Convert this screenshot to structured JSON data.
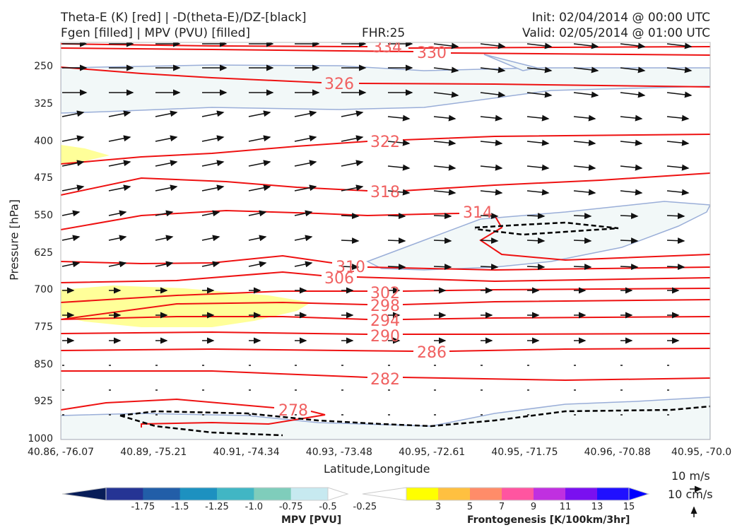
{
  "header": {
    "line1_left": "Theta-E (K) [red] | -D(theta-E)/DZ-[black]",
    "line2_left": "Fgen [filled] | MPV (PVU) [filled]",
    "fhr": "FHR:25",
    "init": "Init: 02/04/2014 @ 00:00 UTC",
    "valid": "Valid: 02/05/2014 @ 01:00 UTC"
  },
  "chart_data": {
    "type": "cross-section",
    "title": "Theta-E (K) [red] | -D(theta-E)/DZ-[black]",
    "subtitle": "Fgen [filled] | MPV (PVU) [filled]",
    "xlabel": "Latitude,Longitude",
    "ylabel": "Pressure [hPa]",
    "x_ticks": [
      "40.86, -76.07",
      "40.89, -75.21",
      "40.91, -74.34",
      "40.93, -73.48",
      "40.95, -72.61",
      "40.95, -71.75",
      "40.96, -70.88",
      "40.95, -70.0"
    ],
    "y_ticks": [
      "250",
      "325",
      "400",
      "475",
      "550",
      "625",
      "700",
      "775",
      "850",
      "925",
      "1000"
    ],
    "y_values": [
      250,
      325,
      400,
      475,
      550,
      625,
      700,
      775,
      850,
      925,
      1000
    ],
    "ylim": [
      200,
      1000
    ],
    "y_inverted": true,
    "theta_e_contour_labels": [
      334,
      330,
      326,
      322,
      318,
      314,
      310,
      306,
      302,
      298,
      294,
      290,
      286,
      282,
      278
    ],
    "theta_e_color": "#ee1111",
    "theta_e_label_color": "#f06060",
    "mpv_colorbar": {
      "title": "MPV [PVU]",
      "labels": [
        "-1.75",
        "-1.5",
        "-1.25",
        "-1.0",
        "-0.75",
        "-0.5",
        "-0.25"
      ],
      "colors": [
        "#081d58",
        "#253494",
        "#225ea8",
        "#1d91c0",
        "#41b6c4",
        "#7fcdbb",
        "#c7e9f0",
        "#ffffff"
      ]
    },
    "fgen_colorbar": {
      "title": "Frontogenesis [K/100km/3hr]",
      "labels": [
        "3",
        "5",
        "7",
        "9",
        "11",
        "13",
        "15"
      ],
      "colors": [
        "#ffffff",
        "#ffff00",
        "#ffc040",
        "#ff8c69",
        "#ff55a0",
        "#c030e0",
        "#7a10f0",
        "#2010ff",
        "#0000ff"
      ]
    },
    "vector_reference": {
      "horizontal": "10 m/s",
      "vertical": "10 cm/s"
    }
  }
}
